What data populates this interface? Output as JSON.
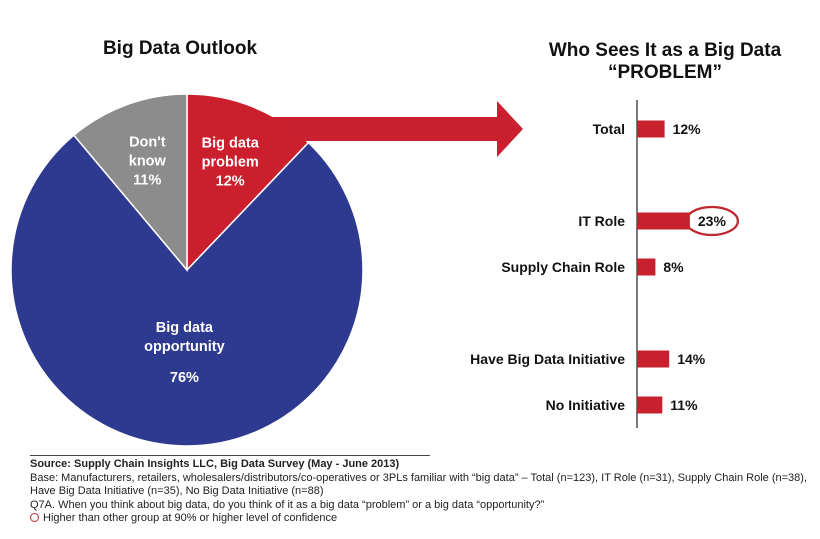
{
  "colors": {
    "opportunity": "#2e3a8f",
    "problem": "#cc1f2e",
    "dont_know": "#8c8c8c",
    "bar": "#c8202f",
    "arrow": "#c8202f",
    "highlight_circle": "#c0262e"
  },
  "chart_data": [
    {
      "type": "pie",
      "title": "Big Data Outlook",
      "slices": [
        {
          "label_lines": [
            "Big data",
            "problem"
          ],
          "value": 12,
          "value_label": "12%",
          "color": "#cc1f2e"
        },
        {
          "label_lines": [
            "Big data",
            "opportunity"
          ],
          "value": 76,
          "value_label": "76%",
          "color": "#2e3a8f"
        },
        {
          "label_lines": [
            "Don't",
            "know"
          ],
          "value": 11,
          "value_label": "11%",
          "color": "#8c8c8c"
        }
      ]
    },
    {
      "type": "bar",
      "orientation": "horizontal",
      "title": "Who Sees It as a Big Data “PROBLEM”",
      "title_lines": [
        "Who Sees It as a Big Data",
        "“PROBLEM”"
      ],
      "categories": [
        "Total",
        "IT Role",
        "Supply Chain Role",
        "Have Big Data Initiative",
        "No Initiative"
      ],
      "values": [
        12,
        23,
        8,
        14,
        11
      ],
      "value_labels": [
        "12%",
        "23%",
        "8%",
        "14%",
        "11%"
      ],
      "highlighted": [
        false,
        true,
        false,
        false,
        false
      ],
      "units": "%"
    }
  ],
  "footer": {
    "source": "Source:  Supply Chain Insights LLC, Big Data Survey  (May - June 2013)",
    "base": "Base:  Manufacturers, retailers, wholesalers/distributors/co-operatives or 3PLs familiar with “big data” – Total (n=123), IT Role (n=31), Supply Chain Role (n=38), Have Big Data Initiative (n=35), No Big Data Initiative (n=88)",
    "question": "Q7A. When you think about big data, do you think of it as a big data “problem” or a big data “opportunity?”",
    "legend_note": "Higher than other group at 90% or higher level of confidence"
  }
}
